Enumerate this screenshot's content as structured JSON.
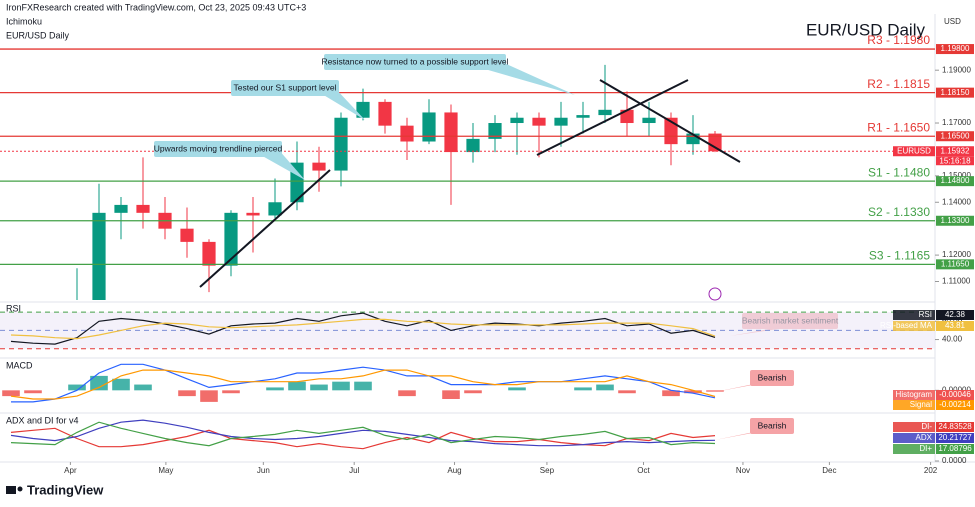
{
  "header": {
    "attribution": "IronFXResearch created with TradingView.com, Oct 23, 2025 09:43 UTC+3",
    "indicator": "Ichimoku",
    "currency": "USD"
  },
  "footer": {
    "brand": "TradingView"
  },
  "chart_data": [
    {
      "type": "candlestick",
      "title": "EUR/USD Daily",
      "symbol": "EURUSD",
      "countdown": "15:16:18",
      "up_color": "#089981",
      "down_color": "#f23645",
      "price_color": "#f23645",
      "categories": [
        null,
        null,
        null,
        null,
        null,
        null,
        null,
        null,
        null,
        null,
        null,
        null,
        null,
        null,
        null,
        null,
        null,
        null,
        null,
        null,
        null,
        null,
        null,
        null,
        null,
        null,
        null,
        null,
        null,
        null,
        null,
        null,
        null
      ],
      "open": [
        1.085,
        1.088,
        1.082,
        1.083,
        1.096,
        1.136,
        1.139,
        1.136,
        1.13,
        1.125,
        1.116,
        1.136,
        1.135,
        1.14,
        1.155,
        1.152,
        1.172,
        1.178,
        1.169,
        1.163,
        1.174,
        1.159,
        1.164,
        1.17,
        1.172,
        1.169,
        1.172,
        1.173,
        1.175,
        1.17,
        1.172,
        1.162,
        1.166
      ],
      "high": [
        1.0955,
        1.0955,
        1.086,
        1.115,
        1.147,
        1.142,
        1.157,
        1.142,
        1.138,
        1.126,
        1.137,
        1.142,
        1.149,
        1.163,
        1.161,
        1.174,
        1.183,
        1.179,
        1.172,
        1.179,
        1.177,
        1.17,
        1.173,
        1.174,
        1.174,
        1.178,
        1.178,
        1.192,
        1.182,
        1.178,
        1.174,
        1.173,
        1.167
      ],
      "low": [
        1.08,
        1.08,
        1.073,
        1.078,
        1.088,
        1.126,
        1.13,
        1.126,
        1.119,
        1.106,
        1.112,
        1.121,
        1.134,
        1.137,
        1.144,
        1.146,
        1.171,
        1.166,
        1.156,
        1.162,
        1.139,
        1.155,
        1.159,
        1.158,
        1.157,
        1.161,
        1.166,
        1.17,
        1.165,
        1.165,
        1.154,
        1.158,
        1.159
      ],
      "close": [
        1.088,
        1.082,
        1.083,
        1.096,
        1.136,
        1.139,
        1.136,
        1.13,
        1.125,
        1.116,
        1.136,
        1.135,
        1.14,
        1.155,
        1.152,
        1.172,
        1.178,
        1.169,
        1.163,
        1.174,
        1.159,
        1.164,
        1.17,
        1.172,
        1.169,
        1.172,
        1.173,
        1.175,
        1.17,
        1.172,
        1.162,
        1.166,
        1.15932
      ],
      "xlim": [
        -0.5,
        42
      ],
      "xticks": [
        {
          "value": 2.7,
          "label": "Apr"
        },
        {
          "value": 7.04,
          "label": "May"
        },
        {
          "value": 11.47,
          "label": "Jun"
        },
        {
          "value": 15.6,
          "label": "Jul"
        },
        {
          "value": 20.16,
          "label": "Aug"
        },
        {
          "value": 24.36,
          "label": "Sep"
        },
        {
          "value": 28.75,
          "label": "Oct"
        },
        {
          "value": 33.27,
          "label": "Nov"
        },
        {
          "value": 37.2,
          "label": "Dec"
        },
        {
          "value": 41.8,
          "label": "202"
        }
      ],
      "ylim": [
        1.103,
        1.209
      ],
      "yticks": [
        {
          "value": 1.19,
          "label": "1.19000"
        },
        {
          "value": 1.17,
          "label": "1.17000"
        },
        {
          "value": 1.15,
          "label": "1.15000"
        },
        {
          "value": 1.14,
          "label": "1.14000"
        },
        {
          "value": 1.12,
          "label": "1.12000"
        },
        {
          "value": 1.11,
          "label": "1.11000"
        }
      ],
      "levels": [
        {
          "label": "R3 - 1.1980",
          "value": 1.198,
          "badge": "1.19800",
          "color": "#e53935"
        },
        {
          "label": "R2 - 1.1815",
          "value": 1.1815,
          "badge": "1.18150",
          "color": "#e53935"
        },
        {
          "label": "R1 - 1.1650",
          "value": 1.165,
          "badge": "1.16500",
          "color": "#e53935"
        },
        {
          "label": "S1 - 1.1480",
          "value": 1.148,
          "badge": "1.14800",
          "color": "#43a047"
        },
        {
          "label": "S2 - 1.1330",
          "value": 1.133,
          "badge": "1.13300",
          "color": "#43a047"
        },
        {
          "label": "S3 - 1.1165",
          "value": 1.1165,
          "badge": "1.11650",
          "color": "#43a047"
        }
      ],
      "annotations": [
        {
          "text": "Resistance now turned to a possible support level",
          "color": "#a5dbe6"
        },
        {
          "text": "Tested our S1 support level",
          "color": "#a5dbe6"
        },
        {
          "text": "Upwards moving trendline  pierced",
          "color": "#a5dbe6"
        },
        {
          "text": "Bearish market sentiment",
          "color": "#f5a3a6"
        },
        {
          "text": "Bearish",
          "color": "#f5a3a6"
        },
        {
          "text": "Bearish",
          "color": "#f5a3a6"
        }
      ]
    },
    {
      "type": "line",
      "title": "RSI",
      "ylim": [
        22,
        80
      ],
      "yticks": [
        {
          "value": 60,
          "label": "60.00"
        },
        {
          "value": 40,
          "label": "40.00"
        }
      ],
      "bands": [
        {
          "value": 70,
          "color": "#43a047"
        },
        {
          "value": 50,
          "color": "#7e8fd6"
        },
        {
          "value": 30,
          "color": "#e53935"
        }
      ],
      "series": [
        {
          "name": "RSI",
          "color": "#131722",
          "values": [
            38,
            36,
            35,
            42,
            60,
            63,
            61,
            57,
            52,
            46,
            55,
            57,
            58,
            63,
            60,
            66,
            69,
            60,
            55,
            61,
            50,
            55,
            58,
            57,
            55,
            58,
            60,
            63,
            55,
            57,
            47,
            50,
            42.38
          ]
        },
        {
          "name": "RSI-based MA",
          "color": "#f0c040",
          "values": [
            45,
            44,
            42,
            41,
            45,
            50,
            55,
            58,
            57,
            54,
            53,
            54,
            55,
            56,
            58,
            60,
            62,
            62,
            60,
            59,
            57,
            56,
            56,
            56,
            56,
            56,
            57,
            58,
            58,
            58,
            55,
            52,
            43.81
          ]
        }
      ]
    },
    {
      "type": "macd",
      "title": "MACD",
      "ylim": [
        -0.0075,
        0.0105
      ],
      "yticks": [
        {
          "value": 0,
          "label": "0.00000"
        }
      ],
      "series": [
        {
          "name": "Histogram",
          "color": "#26a69a",
          "values": [
            -0.002,
            -0.001,
            0,
            0.002,
            0.005,
            0.004,
            0.002,
            0,
            -0.002,
            -0.004,
            -0.001,
            0,
            0.001,
            0.003,
            0.002,
            0.003,
            0.003,
            0,
            -0.002,
            0,
            -0.003,
            -0.001,
            0,
            0.001,
            0,
            0,
            0.001,
            0.002,
            -0.001,
            0,
            -0.002,
            -0.001,
            -0.00046
          ]
        },
        {
          "name": "MACD",
          "color": "#2962ff",
          "values": [
            -0.004,
            -0.004,
            -0.003,
            0,
            0.006,
            0.009,
            0.009,
            0.007,
            0.004,
            0.001,
            0.002,
            0.003,
            0.004,
            0.006,
            0.006,
            0.007,
            0.008,
            0.007,
            0.005,
            0.005,
            0.002,
            0.002,
            0.002,
            0.003,
            0.003,
            0.003,
            0.004,
            0.005,
            0.004,
            0.003,
            0,
            -0.001,
            -0.0026
          ]
        },
        {
          "name": "Signal",
          "color": "#ff9800",
          "values": [
            -0.002,
            -0.003,
            -0.003,
            -0.002,
            0.001,
            0.005,
            0.007,
            0.007,
            0.006,
            0.005,
            0.003,
            0.003,
            0.003,
            0.003,
            0.004,
            0.004,
            0.005,
            0.007,
            0.007,
            0.005,
            0.005,
            0.003,
            0.002,
            0.002,
            0.003,
            0.003,
            0.003,
            0.003,
            0.005,
            0.003,
            0.002,
            0,
            -0.00214
          ]
        }
      ]
    },
    {
      "type": "line",
      "title": "ADX and DI for v4",
      "ylim": [
        0,
        45
      ],
      "yticks": [
        {
          "value": 0,
          "label": "0.0000"
        }
      ],
      "series": [
        {
          "name": "DI-",
          "color": "#e53935",
          "values": [
            28,
            30,
            32,
            22,
            14,
            14,
            16,
            20,
            24,
            30,
            22,
            20,
            18,
            14,
            17,
            14,
            12,
            18,
            23,
            18,
            28,
            22,
            19,
            19,
            21,
            18,
            16,
            15,
            22,
            20,
            27,
            23,
            24.83528
          ]
        },
        {
          "name": "ADX",
          "color": "#3f3fbf",
          "values": [
            25,
            22,
            20,
            24,
            32,
            38,
            40,
            37,
            33,
            28,
            24,
            22,
            21,
            22,
            24,
            27,
            30,
            29,
            26,
            23,
            20,
            19,
            17,
            16,
            15,
            15,
            16,
            18,
            19,
            18,
            19,
            20,
            20.21727
          ]
        },
        {
          "name": "DI+",
          "color": "#43a047",
          "values": [
            18,
            17,
            16,
            28,
            38,
            32,
            27,
            22,
            18,
            15,
            22,
            24,
            26,
            30,
            27,
            30,
            33,
            25,
            21,
            26,
            18,
            21,
            24,
            23,
            21,
            24,
            26,
            29,
            22,
            23,
            16,
            18,
            17.08796
          ]
        }
      ]
    }
  ]
}
